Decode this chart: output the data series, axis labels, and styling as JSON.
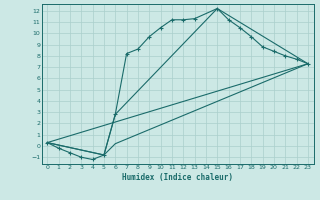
{
  "xlabel": "Humidex (Indice chaleur)",
  "bg_color": "#cce8e5",
  "grid_color": "#aacfcc",
  "line_color": "#1a6b6a",
  "xlim": [
    -0.5,
    23.5
  ],
  "ylim": [
    -1.6,
    12.6
  ],
  "xticks": [
    0,
    1,
    2,
    3,
    4,
    5,
    6,
    7,
    8,
    9,
    10,
    11,
    12,
    13,
    14,
    15,
    16,
    17,
    18,
    19,
    20,
    21,
    22,
    23
  ],
  "yticks": [
    -1,
    0,
    1,
    2,
    3,
    4,
    5,
    6,
    7,
    8,
    9,
    10,
    11,
    12
  ],
  "line1_x": [
    0,
    1,
    2,
    3,
    4,
    5,
    6,
    7,
    8,
    9,
    10,
    11,
    12,
    13,
    15,
    16,
    17,
    18,
    19,
    20,
    21,
    22,
    23
  ],
  "line1_y": [
    0.3,
    -0.2,
    -0.6,
    -1.0,
    -1.2,
    -0.8,
    2.8,
    8.2,
    8.6,
    9.7,
    10.5,
    11.2,
    11.2,
    11.3,
    12.2,
    11.2,
    10.5,
    9.7,
    8.8,
    8.4,
    8.0,
    7.7,
    7.3
  ],
  "line2_x": [
    0,
    5,
    6,
    15,
    23
  ],
  "line2_y": [
    0.3,
    -0.8,
    2.8,
    12.2,
    7.3
  ],
  "line3_x": [
    0,
    5,
    6,
    23
  ],
  "line3_y": [
    0.3,
    -0.8,
    0.2,
    7.3
  ],
  "line4_x": [
    0,
    23
  ],
  "line4_y": [
    0.3,
    7.3
  ]
}
